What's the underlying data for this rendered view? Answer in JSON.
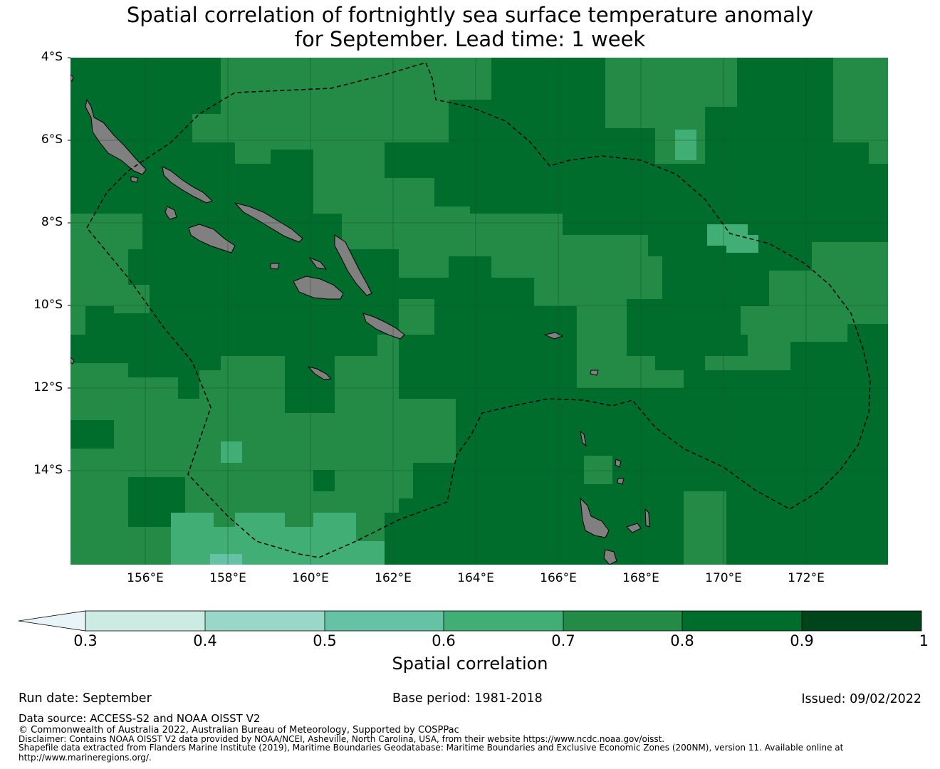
{
  "title": {
    "line1": "Spatial correlation of fortnightly sea surface temperature anomaly",
    "line2": "for September. Lead time: 1 week"
  },
  "map": {
    "lon_range": [
      154.2,
      174.0
    ],
    "lat_range": [
      -4.0,
      -16.3
    ],
    "x_ticks": [
      {
        "value": 156,
        "label": "156°E"
      },
      {
        "value": 158,
        "label": "158°E"
      },
      {
        "value": 160,
        "label": "160°E"
      },
      {
        "value": 162,
        "label": "162°E"
      },
      {
        "value": 164,
        "label": "164°E"
      },
      {
        "value": 166,
        "label": "166°E"
      },
      {
        "value": 168,
        "label": "168°E"
      },
      {
        "value": 170,
        "label": "170°E"
      },
      {
        "value": 172,
        "label": "172°E"
      }
    ],
    "y_ticks": [
      {
        "value": -4,
        "label": "4°S"
      },
      {
        "value": -6,
        "label": "6°S"
      },
      {
        "value": -8,
        "label": "8°S"
      },
      {
        "value": -10,
        "label": "10°S"
      },
      {
        "value": -12,
        "label": "12°S"
      },
      {
        "value": -14,
        "label": "14°S"
      }
    ],
    "land_color": "#808080",
    "gridline_color": "#1a4a2a",
    "eez_style": "dashed black"
  },
  "colorbar": {
    "label": "Spatial correlation",
    "ticks": [
      "0.3",
      "0.4",
      "0.5",
      "0.6",
      "0.7",
      "0.8",
      "0.9",
      "1"
    ],
    "under_color": "#e8f4f8",
    "bins": [
      {
        "from": 0.3,
        "to": 0.4,
        "color": "#ccece3"
      },
      {
        "from": 0.4,
        "to": 0.5,
        "color": "#99d8c8"
      },
      {
        "from": 0.5,
        "to": 0.6,
        "color": "#66c2a4"
      },
      {
        "from": 0.6,
        "to": 0.7,
        "color": "#41ae76"
      },
      {
        "from": 0.7,
        "to": 0.8,
        "color": "#238b45"
      },
      {
        "from": 0.8,
        "to": 0.9,
        "color": "#006d2c"
      },
      {
        "from": 0.9,
        "to": 1.0,
        "color": "#00441b"
      }
    ]
  },
  "footer": {
    "run_date": "Run date: September",
    "base_period": "Base period: 1981-2018",
    "issued": "Issued: 09/02/2022",
    "data_source": "Data source: ACCESS-S2 and NOAA OISST V2",
    "copyright": "© Commonwealth of Australia 2022, Australian Bureau of Meteorology, Supported by COSPPac",
    "disclaimer": "Disclaimer: Contains NOAA OISST V2 data provided by NOAA/NCEI, Asheville, North Carolina, USA, from their website https://www.ncdc.noaa.gov/oisst.",
    "shapefile": "Shapefile data extracted from Flanders Marine Institute (2019), Maritime Boundaries Geodatabase: Maritime Boundaries and Exclusive Economic Zones (200NM), version 11. Available online at",
    "shapefile_url": "http://www.marineregions.org/."
  }
}
